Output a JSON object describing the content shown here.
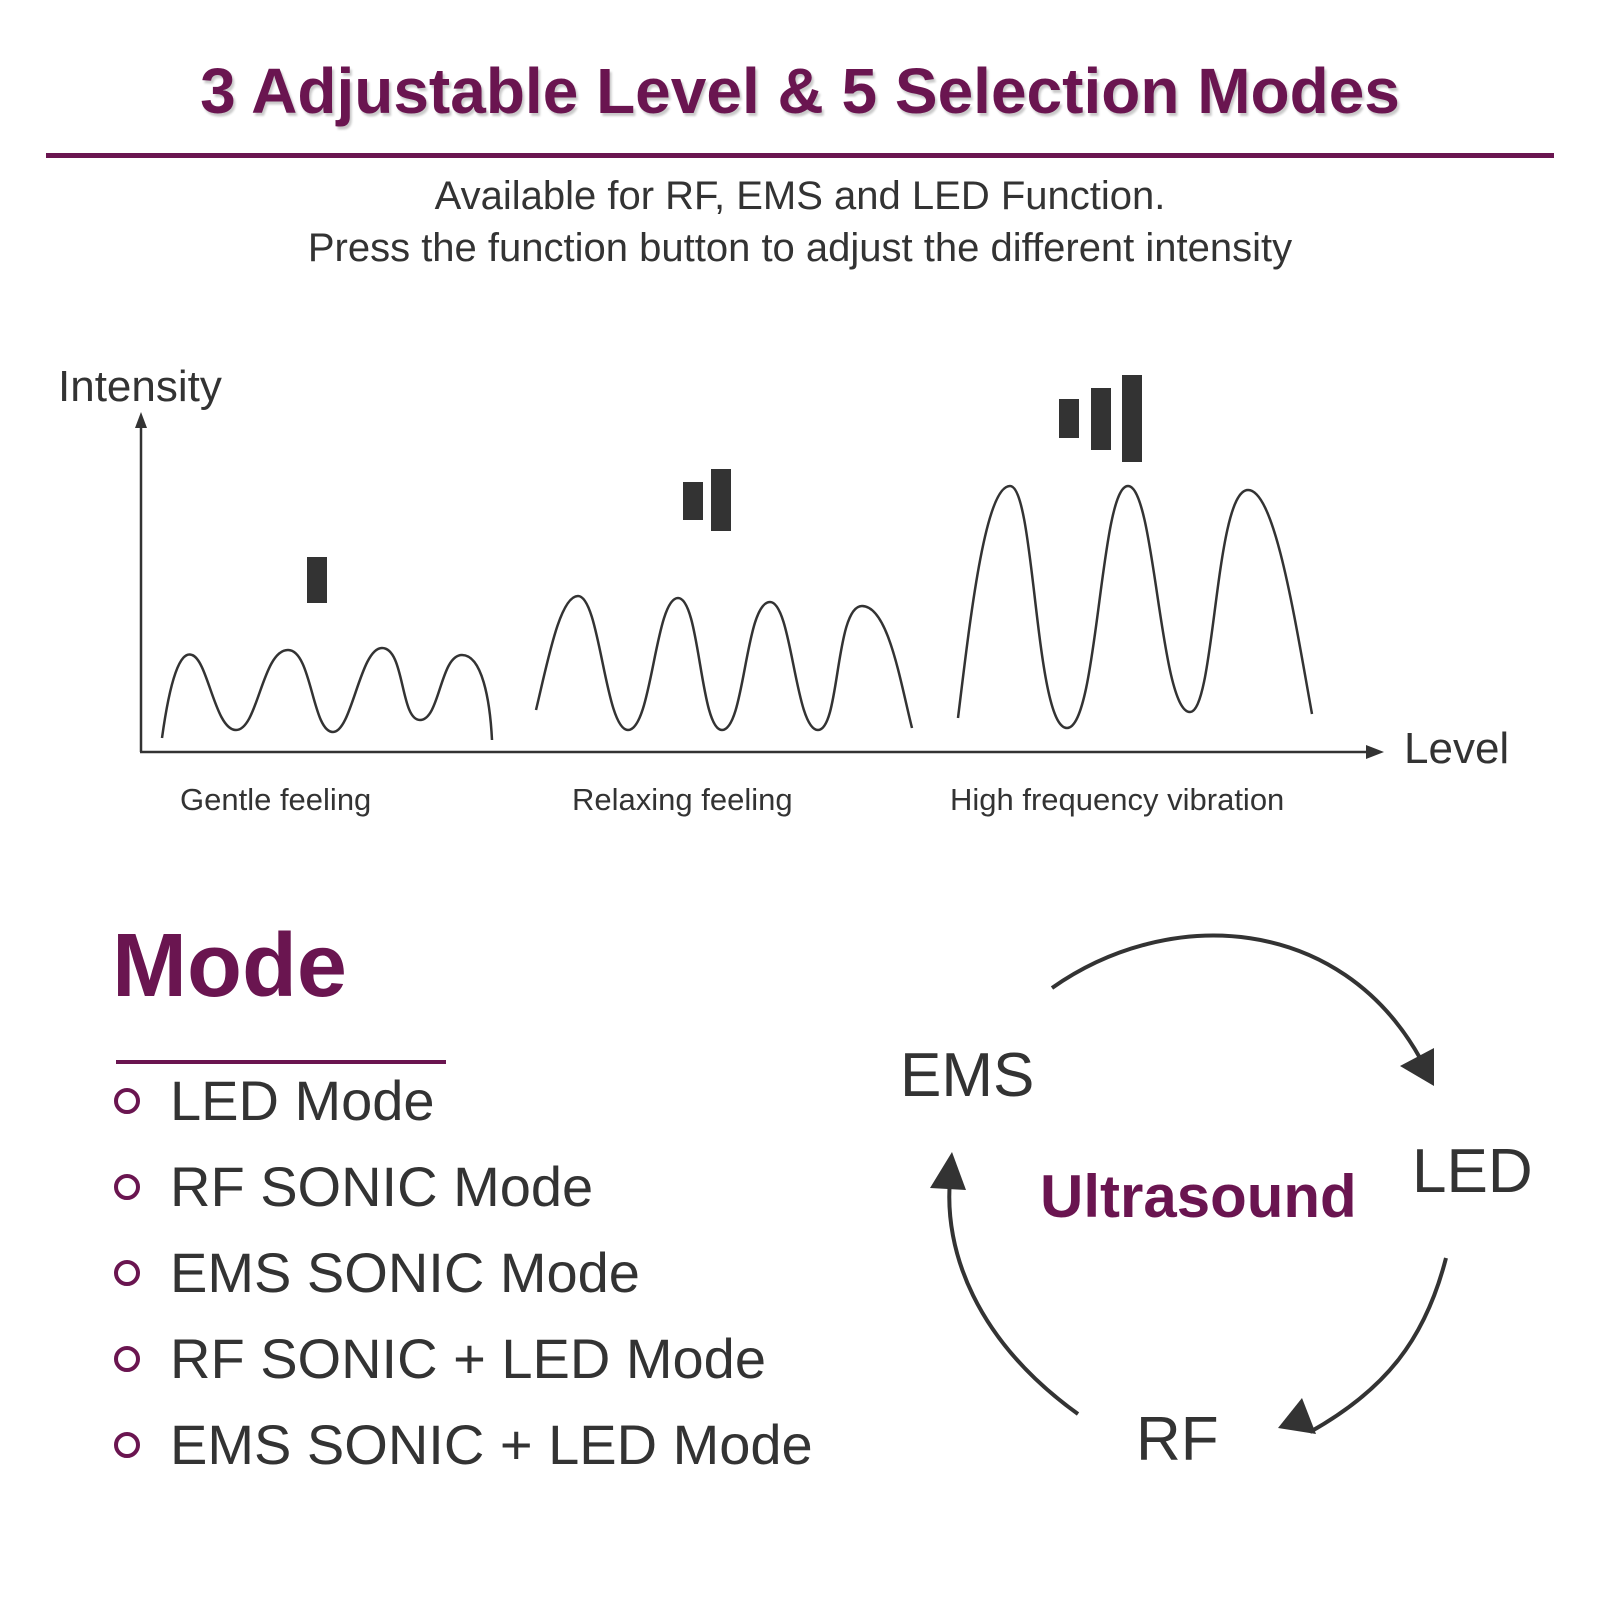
{
  "header": {
    "title": "3 Adjustable Level & 5 Selection Modes",
    "subtitle_line1": "Available for RF, EMS and LED Function.",
    "subtitle_line2": "Press the function button to adjust the different intensity"
  },
  "intensity_diagram": {
    "y_axis_label": "Intensity",
    "x_axis_label": "Level",
    "levels": [
      {
        "caption": "Gentle feeling",
        "level": 1,
        "bars": 1
      },
      {
        "caption": "Relaxing feeling",
        "level": 2,
        "bars": 2
      },
      {
        "caption": "High frequency vibration",
        "level": 3,
        "bars": 3
      }
    ]
  },
  "modes": {
    "title": "Mode",
    "items": [
      "LED Mode",
      "RF SONIC Mode",
      "EMS SONIC Mode",
      "RF SONIC + LED Mode",
      "EMS SONIC + LED Mode"
    ]
  },
  "cycle": {
    "center": "Ultrasound",
    "nodes": [
      "EMS",
      "LED",
      "RF"
    ]
  },
  "colors": {
    "accent": "#6a1550",
    "text": "#333333"
  }
}
